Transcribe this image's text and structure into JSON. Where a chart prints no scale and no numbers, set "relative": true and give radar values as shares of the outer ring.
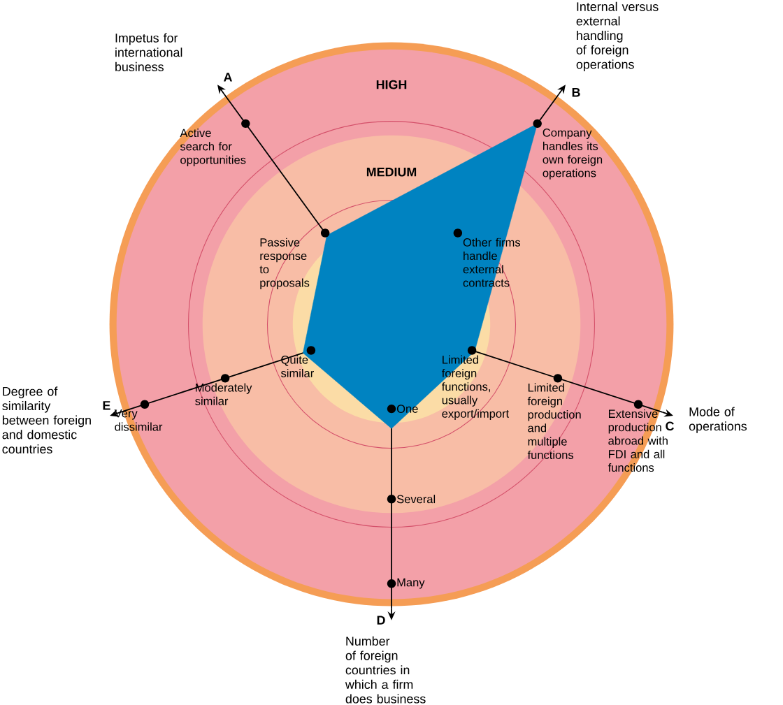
{
  "chart_data": {
    "type": "radar",
    "relative": true,
    "categories": [
      "Internal versus external handling of foreign operations",
      "Mode of operations",
      "Number of foreign countries in which a firm does business",
      "Degree of similarity between foreign and domestic countries",
      "Impetus for international business"
    ],
    "series": [
      {
        "color": "#0083c1",
        "values": [
          0.88,
          0.31,
          0.37,
          0.33,
          0.39
        ]
      }
    ],
    "annotations": [
      "B",
      "C",
      "D",
      "E",
      "A",
      "HIGH",
      "MEDIUM",
      {
        "text": "Other firms handle external contracts",
        "x": "Internal versus external handling of foreign operations"
      },
      {
        "text": "Company handles its own foreign operations",
        "x": "Internal versus external handling of foreign operations"
      },
      {
        "text": "Limited foreign functions, usually export/import",
        "x": "Mode of operations"
      },
      {
        "text": "Limited foreign production and multiple functions",
        "x": "Mode of operations"
      },
      {
        "text": "Extensive production abroad with FDI and all functions",
        "x": "Mode of operations"
      },
      {
        "text": "One",
        "x": "Number of foreign countries in which a firm does business"
      },
      {
        "text": "Several",
        "x": "Number of foreign countries in which a firm does business"
      },
      {
        "text": "Many",
        "x": "Number of foreign countries in which a firm does business"
      },
      {
        "text": "Quite similar",
        "x": "Degree of similarity between foreign and domestic countries"
      },
      {
        "text": "Moderately similar",
        "x": "Degree of similarity between foreign and domestic countries"
      },
      {
        "text": "Very dissimilar",
        "x": "Degree of similarity between foreign and domestic countries"
      },
      {
        "text": "Passive response to proposals",
        "x": "Impetus for international business"
      },
      {
        "text": "Active search for opportunities",
        "x": "Impetus for international business"
      }
    ]
  }
}
